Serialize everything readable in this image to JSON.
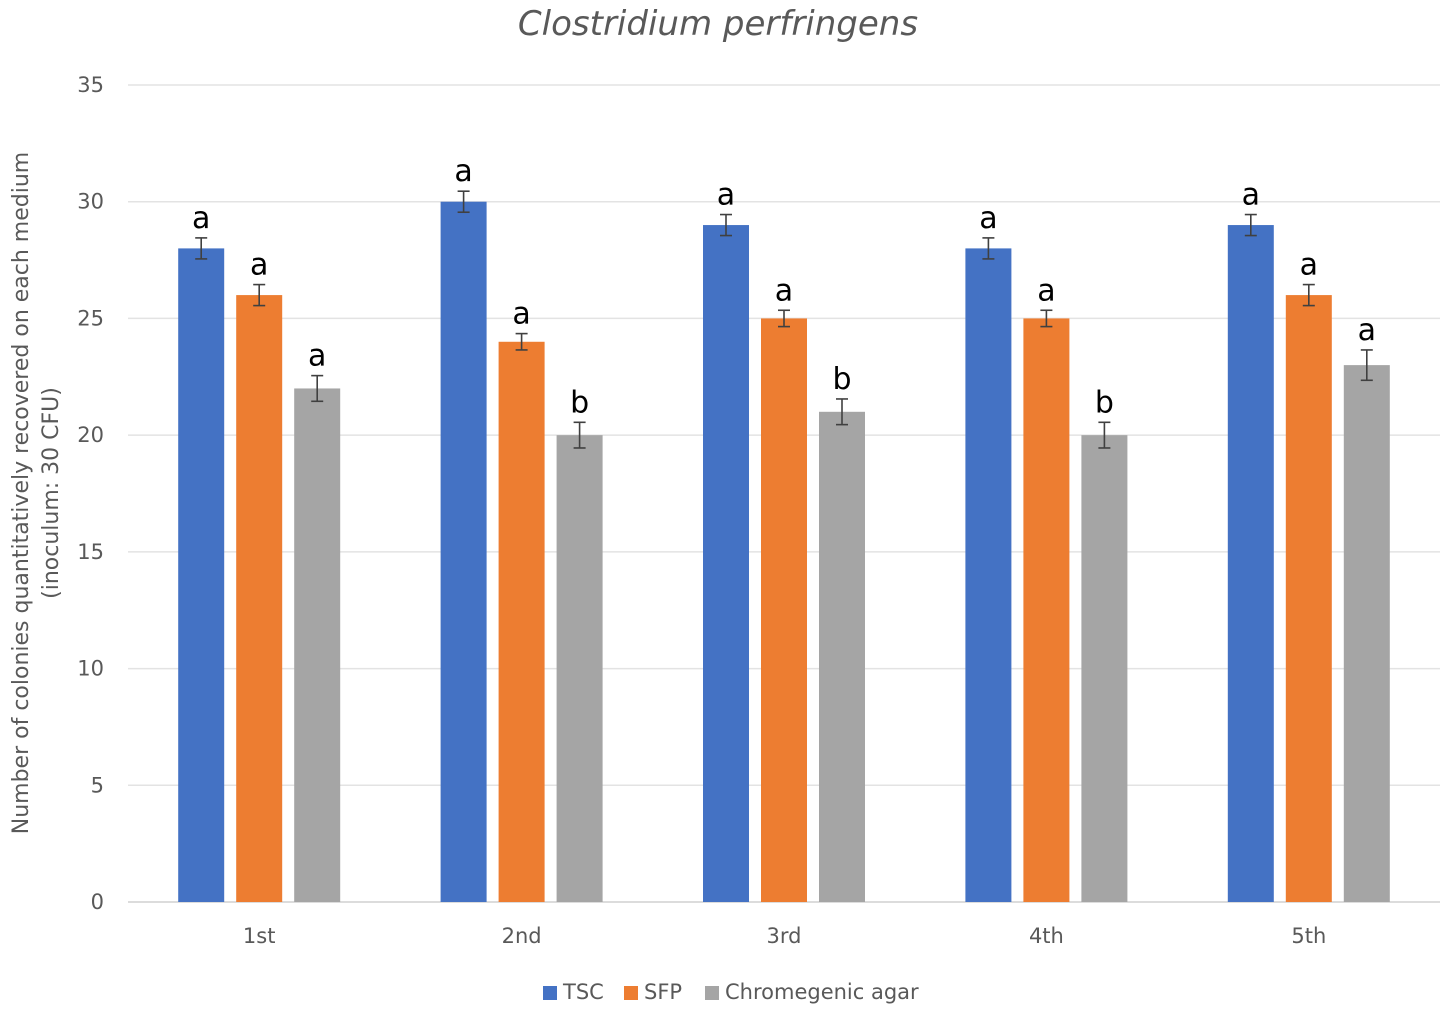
{
  "chart_data": {
    "type": "bar",
    "title": "Clostridium perfringens",
    "ylabel_lines": [
      "Number of colonies quantitatively recovered on each medium",
      "(inoculum: 30 CFU)"
    ],
    "xlabel": "",
    "ylim": [
      0,
      35
    ],
    "yticks": [
      0,
      5,
      10,
      15,
      20,
      25,
      30,
      35
    ],
    "grid": true,
    "legend_position": "bottom",
    "categories": [
      "1st",
      "2nd",
      "3rd",
      "4th",
      "5th"
    ],
    "series": [
      {
        "name": "TSC",
        "color": "#4472C4",
        "values": [
          28,
          30,
          29,
          28,
          29
        ],
        "errors": [
          0.45,
          0.45,
          0.45,
          0.45,
          0.45
        ],
        "labels": [
          "a",
          "a",
          "a",
          "a",
          "a"
        ]
      },
      {
        "name": "SFP",
        "color": "#ED7D31",
        "values": [
          26,
          24,
          25,
          25,
          26
        ],
        "errors": [
          0.45,
          0.35,
          0.35,
          0.35,
          0.45
        ],
        "labels": [
          "a",
          "a",
          "a",
          "a",
          "a"
        ]
      },
      {
        "name": "Chromegenic agar",
        "color": "#A5A5A5",
        "values": [
          22,
          20,
          21,
          20,
          23
        ],
        "errors": [
          0.55,
          0.55,
          0.55,
          0.55,
          0.65
        ],
        "labels": [
          "a",
          "b",
          "b",
          "b",
          "a"
        ]
      }
    ]
  }
}
